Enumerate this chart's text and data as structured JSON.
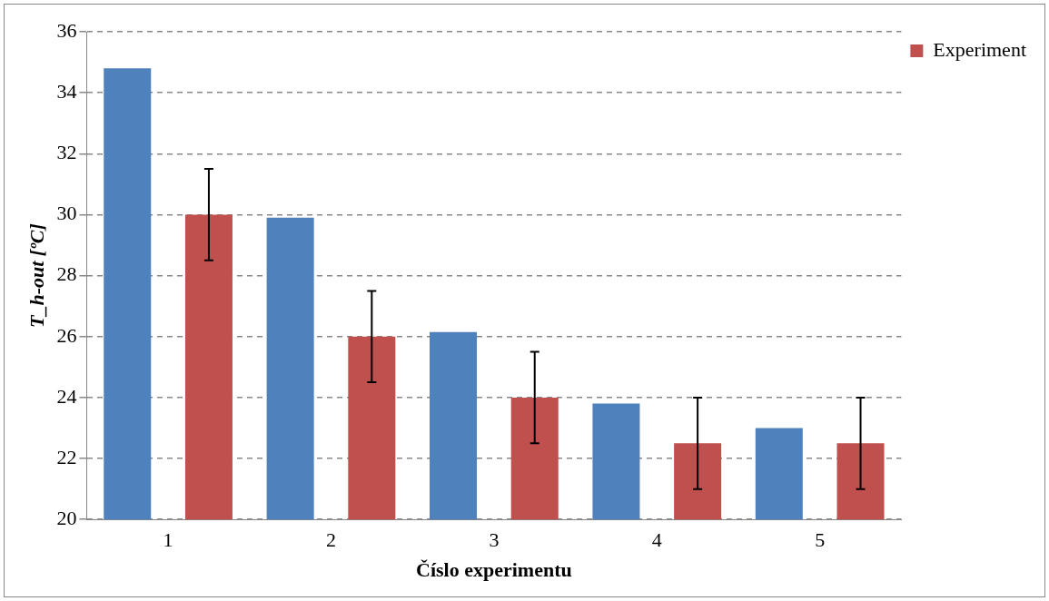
{
  "chart_data": {
    "type": "bar",
    "xlabel": "Číslo experimentu",
    "ylabel": "T_h-out [ºC]",
    "categories": [
      "1",
      "2",
      "3",
      "4",
      "5"
    ],
    "series": [
      {
        "color": "#4f81bd",
        "values": [
          34.8,
          29.9,
          26.15,
          23.8,
          23.0
        ]
      },
      {
        "name": "Experiment",
        "color": "#c0504d",
        "values": [
          30,
          26,
          24,
          22.5,
          22.5
        ],
        "errors": [
          1.5,
          1.5,
          1.5,
          1.5,
          1.5
        ]
      }
    ],
    "ylim": [
      20,
      36
    ],
    "yticks": [
      20,
      22,
      24,
      26,
      28,
      30,
      32,
      34,
      36
    ],
    "grid": "y",
    "legend": "top right"
  }
}
